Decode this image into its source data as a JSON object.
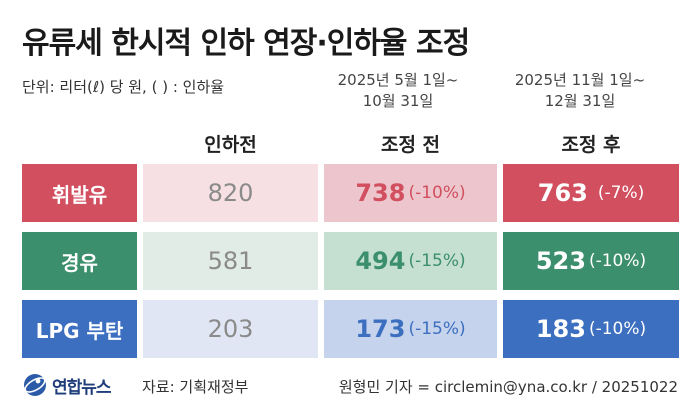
{
  "title": "유류세 한시적 인하 연장·인하율 조정",
  "unit": "단위: 리터(ℓ) 당 원, ( ) : 인하율",
  "periods": {
    "mid": {
      "line1": "2025년 5월 1일~",
      "line2": "10월 31일"
    },
    "after": {
      "line1": "2025년 11월 1일~",
      "line2": "12월 31일"
    }
  },
  "columns": {
    "before": "인하전",
    "mid": "조정 전",
    "after": "조정 후"
  },
  "rows": [
    {
      "fuel": "휘발유",
      "before": "820",
      "mid_value": "738",
      "mid_rate": "(-10%)",
      "after_value": "763",
      "after_rate": "(-7%)",
      "color": "#d24f60"
    },
    {
      "fuel": "경유",
      "before": "581",
      "mid_value": "494",
      "mid_rate": "(-15%)",
      "after_value": "523",
      "after_rate": "(-10%)",
      "color": "#3c8f6c"
    },
    {
      "fuel": "LPG 부탄",
      "before": "203",
      "mid_value": "173",
      "mid_rate": "(-15%)",
      "after_value": "183",
      "after_rate": "(-10%)",
      "color": "#3d6fc1"
    }
  ],
  "footer": {
    "logo": "연합뉴스",
    "logo_icon": "yonhap-globe-icon",
    "source": "자료: 기획재정부",
    "credit": "원형민 기자 = circlemin@yna.co.kr / 20251022"
  }
}
